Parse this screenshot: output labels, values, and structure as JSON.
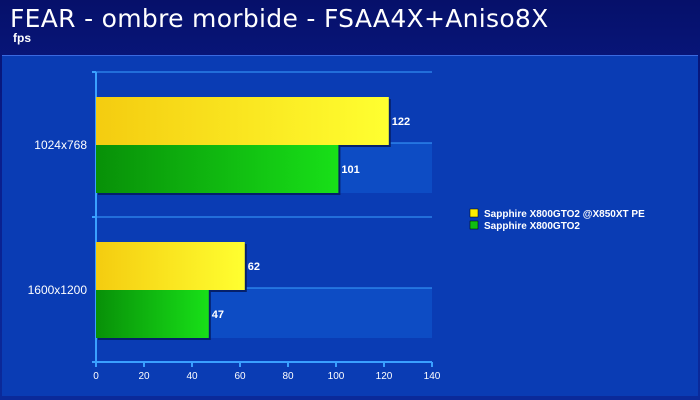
{
  "header": {
    "title": "FEAR - ombre morbide - FSAA4X+Aniso8X",
    "subtitle": "fps"
  },
  "chart_data": {
    "type": "bar",
    "orientation": "horizontal",
    "title": "FEAR - ombre morbide - FSAA4X+Aniso8X",
    "ylabel": "fps",
    "categories": [
      "1024x768",
      "1600x1200"
    ],
    "series": [
      {
        "name": "Sapphire X800GTO2 @X850XT PE",
        "values": [
          122,
          62
        ],
        "color": "#ffee00"
      },
      {
        "name": "Sapphire X800GTO2",
        "values": [
          101,
          47
        ],
        "color": "#10c010"
      }
    ],
    "xlim": [
      0,
      140
    ],
    "xticks": [
      0,
      20,
      40,
      60,
      80,
      100,
      120,
      140
    ],
    "legend_position": "right",
    "grid": true,
    "colors": {
      "background": "#0a3cb4",
      "band": "#0d4cc4",
      "axis": "#3aa0ff"
    }
  }
}
